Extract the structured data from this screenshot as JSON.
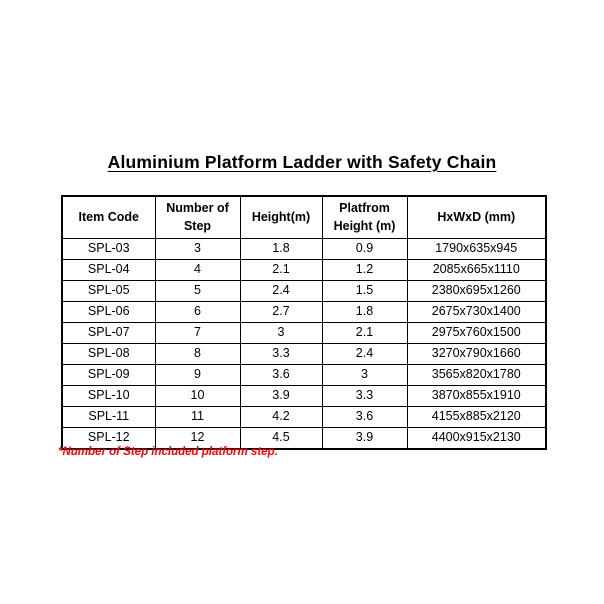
{
  "title": "Aluminium Platform Ladder with Safety Chain",
  "table": {
    "headers": [
      "Item Code",
      "Number of Step",
      "Height(m)",
      "Platfrom Height (m)",
      "HxWxD (mm)"
    ],
    "rows": [
      [
        "SPL-03",
        "3",
        "1.8",
        "0.9",
        "1790x635x945"
      ],
      [
        "SPL-04",
        "4",
        "2.1",
        "1.2",
        "2085x665x1110"
      ],
      [
        "SPL-05",
        "5",
        "2.4",
        "1.5",
        "2380x695x1260"
      ],
      [
        "SPL-06",
        "6",
        "2.7",
        "1.8",
        "2675x730x1400"
      ],
      [
        "SPL-07",
        "7",
        "3",
        "2.1",
        "2975x760x1500"
      ],
      [
        "SPL-08",
        "8",
        "3.3",
        "2.4",
        "3270x790x1660"
      ],
      [
        "SPL-09",
        "9",
        "3.6",
        "3",
        "3565x820x1780"
      ],
      [
        "SPL-10",
        "10",
        "3.9",
        "3.3",
        "3870x855x1910"
      ],
      [
        "SPL-11",
        "11",
        "4.2",
        "3.6",
        "4155x885x2120"
      ],
      [
        "SPL-12",
        "12",
        "4.5",
        "3.9",
        "4400x915x2130"
      ]
    ]
  },
  "footnote": "*Number of Step included platform step.",
  "colors": {
    "background": "#ffffff",
    "text": "#000000",
    "border": "#000000",
    "footnote_red": "#ff0000"
  }
}
